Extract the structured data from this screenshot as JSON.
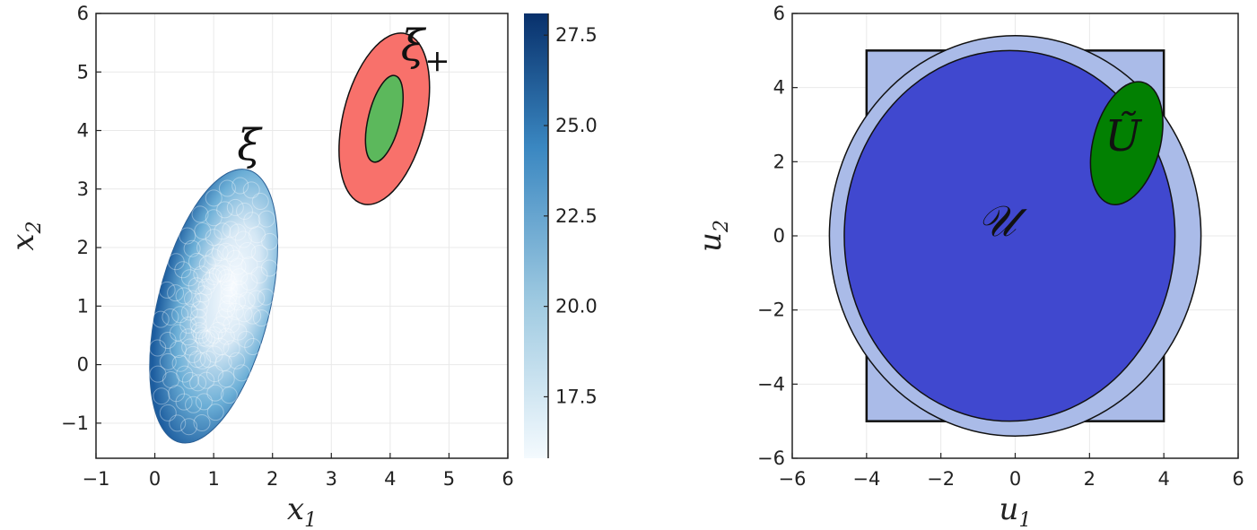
{
  "chart_data": [
    {
      "type": "scatter",
      "subtype": "ellipse-region-plot",
      "xlabel": "x",
      "xlabel_sub": "1",
      "ylabel": "x",
      "ylabel_sub": "2",
      "xlim": [
        -1,
        6
      ],
      "ylim": [
        -1.6,
        6
      ],
      "xticks": [
        -1,
        0,
        1,
        2,
        3,
        4,
        5,
        6
      ],
      "xtick_labels": [
        "−1",
        "0",
        "1",
        "2",
        "3",
        "4",
        "5",
        "6"
      ],
      "yticks": [
        -1,
        0,
        1,
        2,
        3,
        4,
        5,
        6
      ],
      "ytick_labels": [
        "−1",
        "0",
        "1",
        "2",
        "3",
        "4",
        "5",
        "6"
      ],
      "grid": true,
      "regions": [
        {
          "name": "ξ",
          "kind": "ellipse",
          "center": [
            1.0,
            1.0
          ],
          "semi_axes": [
            0.95,
            2.4
          ],
          "angle_deg": -14,
          "fill": "colormap"
        },
        {
          "name": "ξ+",
          "kind": "ellipse",
          "center": [
            3.9,
            4.2
          ],
          "semi_axes": [
            0.7,
            1.5
          ],
          "angle_deg": -14,
          "fill": "#f8716b"
        },
        {
          "name": "inner",
          "kind": "ellipse",
          "center": [
            3.9,
            4.2
          ],
          "semi_axes": [
            0.27,
            0.76
          ],
          "angle_deg": -14,
          "fill": "#5cb85c"
        }
      ],
      "annotations": [
        {
          "text": "ξ",
          "sub": "",
          "at": [
            1.6,
            3.5
          ]
        },
        {
          "text": "ξ",
          "sub": "+",
          "at": [
            4.6,
            5.2
          ]
        }
      ],
      "colorbar": {
        "range": [
          15.8,
          28.1
        ],
        "ticks": [
          17.5,
          20.0,
          22.5,
          25.0,
          27.5
        ],
        "tick_labels": [
          "17.5",
          "20.0",
          "22.5",
          "25.0",
          "27.5"
        ],
        "color_low": "#f4fafe",
        "color_high": "#08306b"
      }
    },
    {
      "type": "scatter",
      "subtype": "set-region-plot",
      "xlabel": "u",
      "xlabel_sub": "1",
      "ylabel": "u",
      "ylabel_sub": "2",
      "xlim": [
        -6,
        6
      ],
      "ylim": [
        -6,
        6
      ],
      "xticks": [
        -6,
        -4,
        -2,
        0,
        2,
        4,
        6
      ],
      "xtick_labels": [
        "−6",
        "−4",
        "−2",
        "0",
        "2",
        "4",
        "6"
      ],
      "yticks": [
        -6,
        -4,
        -2,
        0,
        2,
        4,
        6
      ],
      "ytick_labels": [
        "−6",
        "−4",
        "−2",
        "0",
        "2",
        "4",
        "6"
      ],
      "grid": true,
      "regions": [
        {
          "name": "box",
          "kind": "rect",
          "x": [
            -4,
            4
          ],
          "y": [
            -5,
            5
          ],
          "fill": "#aabbe8"
        },
        {
          "name": "outer-circle",
          "kind": "ellipse",
          "center": [
            0,
            0
          ],
          "semi_axes": [
            5,
            5.4
          ],
          "angle_deg": 0,
          "fill": "#aabbe8"
        },
        {
          "name": "U",
          "kind": "ellipse",
          "center": [
            -0.15,
            0
          ],
          "semi_axes": [
            4.45,
            5.0
          ],
          "angle_deg": 0,
          "fill": "#4048cf"
        },
        {
          "name": "Ũ",
          "kind": "ellipse",
          "center": [
            3.0,
            2.5
          ],
          "semi_axes": [
            0.9,
            1.7
          ],
          "angle_deg": -15,
          "fill": "#028002"
        }
      ],
      "annotations": [
        {
          "text": "𝒰",
          "at": [
            -0.5,
            0
          ]
        },
        {
          "text": "Ũ",
          "at": [
            2.9,
            2.3
          ]
        }
      ]
    }
  ]
}
